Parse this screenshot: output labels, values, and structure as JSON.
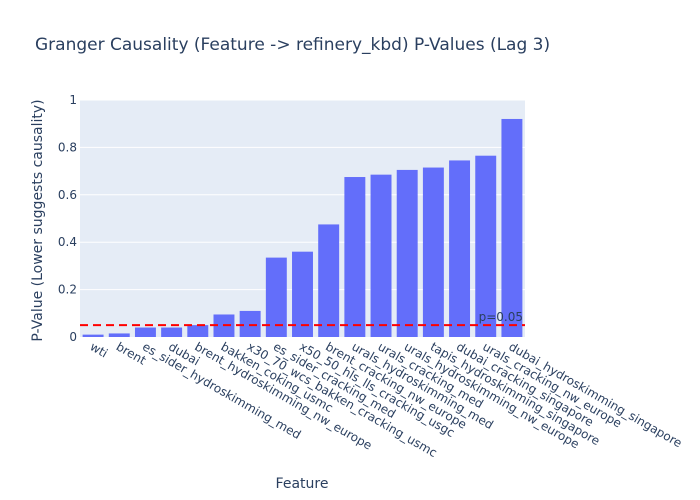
{
  "chart_data": {
    "type": "bar",
    "title": "Granger Causality (Feature -> refinery_kbd) P-Values (Lag 3)",
    "xlabel": "Feature",
    "ylabel": "P-Value (Lower suggests causality)",
    "ylim": [
      0,
      1
    ],
    "yticks": [
      0,
      0.2,
      0.4,
      0.6,
      0.8,
      1
    ],
    "ytick_labels": [
      "0",
      "0.2",
      "0.4",
      "0.6",
      "0.8",
      "1"
    ],
    "categories": [
      "wti",
      "brent",
      "es_sider_hydroskimming_med",
      "dubai",
      "brent_hydroskimming_nw_europe",
      "bakken_coking_usmc",
      "x30_70_wcs_bakken_cracking_usmc",
      "es_sider_cracking_med",
      "x50_50_hls_lls_cracking_usgc",
      "brent_cracking_nw_europe",
      "urals_hydroskimming_med",
      "urals_cracking_med",
      "urals_hydroskimming_nw_europe",
      "tapis_hydroskimming_singapore",
      "dubai_cracking_singapore",
      "urals_cracking_nw_europe",
      "dubai_hydroskimming_singapore"
    ],
    "values": [
      0.01,
      0.015,
      0.04,
      0.04,
      0.05,
      0.095,
      0.11,
      0.335,
      0.36,
      0.475,
      0.675,
      0.685,
      0.705,
      0.715,
      0.745,
      0.765,
      0.92
    ],
    "bar_color": "#636efa",
    "threshold": {
      "value": 0.05,
      "label": "p=0.05",
      "color": "#ff0000",
      "style": "dashed"
    },
    "grid": true,
    "background": "#e5ecf6"
  }
}
